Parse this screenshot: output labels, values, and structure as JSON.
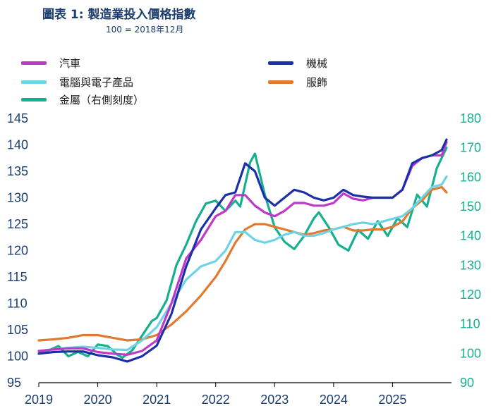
{
  "title": "圖表 1: 製造業投入價格指數",
  "subtitle": "100 = 2018年12月",
  "chart_data": {
    "type": "line",
    "title": "圖表 1: 製造業投入價格指數",
    "subtitle": "100 = 2018年12月",
    "x_start": "2019-01",
    "x_end": "2025-12",
    "x_tick_labels": [
      "2019",
      "2020",
      "2021",
      "2022",
      "2023",
      "2024",
      "2025"
    ],
    "y_left_ticks": [
      95,
      100,
      105,
      110,
      115,
      120,
      125,
      130,
      135,
      140,
      145
    ],
    "y_left_range": [
      95,
      145
    ],
    "y_right_ticks": [
      90,
      100,
      110,
      120,
      130,
      140,
      150,
      160,
      170,
      180
    ],
    "y_right_range": [
      90,
      180
    ],
    "grid": false,
    "legend_placement": "top",
    "series": [
      {
        "name": "汽車",
        "color": "#c038c8",
        "axis": "left",
        "points": [
          [
            "2019-01",
            101.0
          ],
          [
            "2019-04",
            101.3
          ],
          [
            "2019-07",
            101.5
          ],
          [
            "2019-10",
            101.5
          ],
          [
            "2020-01",
            100.8
          ],
          [
            "2020-04",
            100.5
          ],
          [
            "2020-07",
            100.3
          ],
          [
            "2020-10",
            101.0
          ],
          [
            "2021-01",
            103.0
          ],
          [
            "2021-04",
            110.0
          ],
          [
            "2021-07",
            118.5
          ],
          [
            "2021-10",
            122.0
          ],
          [
            "2022-01",
            126.5
          ],
          [
            "2022-03",
            127.5
          ],
          [
            "2022-05",
            130.5
          ],
          [
            "2022-07",
            130.5
          ],
          [
            "2022-09",
            128.5
          ],
          [
            "2022-11",
            127.2
          ],
          [
            "2023-01",
            126.5
          ],
          [
            "2023-03",
            127.5
          ],
          [
            "2023-05",
            129.0
          ],
          [
            "2023-07",
            129.0
          ],
          [
            "2023-09",
            128.5
          ],
          [
            "2023-11",
            128.5
          ],
          [
            "2024-01",
            129.0
          ],
          [
            "2024-03",
            130.8
          ],
          [
            "2024-05",
            129.8
          ],
          [
            "2024-07",
            129.5
          ],
          [
            "2024-09",
            130.0
          ],
          [
            "2024-11",
            130.0
          ],
          [
            "2025-01",
            130.0
          ],
          [
            "2025-03",
            131.5
          ],
          [
            "2025-05",
            136.0
          ],
          [
            "2025-07",
            137.5
          ],
          [
            "2025-09",
            138.0
          ],
          [
            "2025-11",
            138.0
          ],
          [
            "2025-12",
            140.5
          ]
        ]
      },
      {
        "name": "電腦與電子產品",
        "color": "#6fd3e6",
        "axis": "left",
        "points": [
          [
            "2019-01",
            101.0
          ],
          [
            "2019-04",
            101.3
          ],
          [
            "2019-07",
            101.6
          ],
          [
            "2019-10",
            101.8
          ],
          [
            "2020-01",
            101.6
          ],
          [
            "2020-04",
            101.3
          ],
          [
            "2020-07",
            101.2
          ],
          [
            "2020-10",
            103.0
          ],
          [
            "2021-01",
            105.5
          ],
          [
            "2021-04",
            110.0
          ],
          [
            "2021-07",
            114.5
          ],
          [
            "2021-10",
            117.0
          ],
          [
            "2022-01",
            118.0
          ],
          [
            "2022-03",
            120.0
          ],
          [
            "2022-05",
            123.5
          ],
          [
            "2022-07",
            123.5
          ],
          [
            "2022-09",
            122.0
          ],
          [
            "2022-11",
            121.5
          ],
          [
            "2023-01",
            122.0
          ],
          [
            "2023-03",
            123.0
          ],
          [
            "2023-05",
            123.5
          ],
          [
            "2023-07",
            122.8
          ],
          [
            "2023-09",
            122.8
          ],
          [
            "2023-11",
            123.3
          ],
          [
            "2024-01",
            124.0
          ],
          [
            "2024-03",
            124.5
          ],
          [
            "2024-05",
            125.0
          ],
          [
            "2024-07",
            125.3
          ],
          [
            "2024-09",
            125.0
          ],
          [
            "2024-11",
            125.5
          ],
          [
            "2025-01",
            126.0
          ],
          [
            "2025-03",
            126.5
          ],
          [
            "2025-05",
            128.0
          ],
          [
            "2025-07",
            130.0
          ],
          [
            "2025-09",
            132.0
          ],
          [
            "2025-11",
            132.5
          ],
          [
            "2025-12",
            134.0
          ]
        ]
      },
      {
        "name": "金屬（右側刻度）",
        "color": "#17b08f",
        "axis": "right",
        "points": [
          [
            "2019-01",
            100.0
          ],
          [
            "2019-03",
            101.0
          ],
          [
            "2019-05",
            102.5
          ],
          [
            "2019-07",
            99.0
          ],
          [
            "2019-09",
            100.5
          ],
          [
            "2019-11",
            99.0
          ],
          [
            "2020-01",
            103.0
          ],
          [
            "2020-03",
            102.5
          ],
          [
            "2020-05",
            99.5
          ],
          [
            "2020-06",
            98.5
          ],
          [
            "2020-08",
            101.0
          ],
          [
            "2020-10",
            106.0
          ],
          [
            "2020-12",
            111.0
          ],
          [
            "2021-01",
            112.0
          ],
          [
            "2021-03",
            118.0
          ],
          [
            "2021-05",
            130.0
          ],
          [
            "2021-07",
            137.0
          ],
          [
            "2021-09",
            145.0
          ],
          [
            "2021-11",
            151.0
          ],
          [
            "2022-01",
            152.0
          ],
          [
            "2022-03",
            148.5
          ],
          [
            "2022-05",
            152.0
          ],
          [
            "2022-06",
            150.0
          ],
          [
            "2022-08",
            165.0
          ],
          [
            "2022-09",
            168.0
          ],
          [
            "2022-11",
            154.0
          ],
          [
            "2023-01",
            143.0
          ],
          [
            "2023-03",
            138.0
          ],
          [
            "2023-05",
            135.5
          ],
          [
            "2023-07",
            140.0
          ],
          [
            "2023-09",
            146.0
          ],
          [
            "2023-10",
            148.0
          ],
          [
            "2023-12",
            143.0
          ],
          [
            "2024-02",
            137.0
          ],
          [
            "2024-04",
            135.0
          ],
          [
            "2024-06",
            142.0
          ],
          [
            "2024-08",
            139.0
          ],
          [
            "2024-10",
            145.0
          ],
          [
            "2024-12",
            140.0
          ],
          [
            "2025-02",
            146.0
          ],
          [
            "2025-04",
            143.0
          ],
          [
            "2025-06",
            154.0
          ],
          [
            "2025-08",
            150.0
          ],
          [
            "2025-10",
            163.0
          ],
          [
            "2025-12",
            170.0
          ]
        ]
      },
      {
        "name": "機械",
        "color": "#1b2fa8",
        "axis": "left",
        "points": [
          [
            "2019-01",
            100.5
          ],
          [
            "2019-04",
            100.8
          ],
          [
            "2019-07",
            100.9
          ],
          [
            "2019-10",
            100.9
          ],
          [
            "2020-01",
            100.2
          ],
          [
            "2020-04",
            99.8
          ],
          [
            "2020-07",
            99.0
          ],
          [
            "2020-10",
            100.0
          ],
          [
            "2021-01",
            102.0
          ],
          [
            "2021-04",
            108.0
          ],
          [
            "2021-07",
            117.0
          ],
          [
            "2021-10",
            124.0
          ],
          [
            "2022-01",
            128.0
          ],
          [
            "2022-03",
            130.5
          ],
          [
            "2022-05",
            131.0
          ],
          [
            "2022-07",
            136.5
          ],
          [
            "2022-09",
            135.0
          ],
          [
            "2022-11",
            130.0
          ],
          [
            "2023-01",
            128.5
          ],
          [
            "2023-03",
            130.0
          ],
          [
            "2023-05",
            131.5
          ],
          [
            "2023-07",
            131.0
          ],
          [
            "2023-09",
            130.0
          ],
          [
            "2023-11",
            129.5
          ],
          [
            "2024-01",
            130.0
          ],
          [
            "2024-03",
            131.5
          ],
          [
            "2024-05",
            130.5
          ],
          [
            "2024-07",
            130.2
          ],
          [
            "2024-09",
            130.0
          ],
          [
            "2024-11",
            130.0
          ],
          [
            "2025-01",
            130.0
          ],
          [
            "2025-03",
            131.5
          ],
          [
            "2025-05",
            136.5
          ],
          [
            "2025-07",
            137.5
          ],
          [
            "2025-09",
            138.0
          ],
          [
            "2025-11",
            139.0
          ],
          [
            "2025-12",
            141.0
          ]
        ]
      },
      {
        "name": "服飾",
        "color": "#e07a30",
        "axis": "left",
        "points": [
          [
            "2019-01",
            103.0
          ],
          [
            "2019-04",
            103.2
          ],
          [
            "2019-07",
            103.5
          ],
          [
            "2019-10",
            104.0
          ],
          [
            "2020-01",
            104.0
          ],
          [
            "2020-04",
            103.5
          ],
          [
            "2020-07",
            103.0
          ],
          [
            "2020-10",
            103.2
          ],
          [
            "2021-01",
            104.0
          ],
          [
            "2021-04",
            106.0
          ],
          [
            "2021-07",
            108.5
          ],
          [
            "2021-10",
            111.5
          ],
          [
            "2022-01",
            115.0
          ],
          [
            "2022-03",
            118.0
          ],
          [
            "2022-05",
            121.5
          ],
          [
            "2022-07",
            124.0
          ],
          [
            "2022-09",
            125.0
          ],
          [
            "2022-11",
            125.0
          ],
          [
            "2023-01",
            124.5
          ],
          [
            "2023-03",
            124.0
          ],
          [
            "2023-05",
            123.5
          ],
          [
            "2023-07",
            123.0
          ],
          [
            "2023-09",
            123.3
          ],
          [
            "2023-11",
            123.8
          ],
          [
            "2024-01",
            124.0
          ],
          [
            "2024-03",
            124.5
          ],
          [
            "2024-05",
            123.8
          ],
          [
            "2024-07",
            123.8
          ],
          [
            "2024-09",
            124.0
          ],
          [
            "2024-11",
            124.0
          ],
          [
            "2025-01",
            124.5
          ],
          [
            "2025-03",
            125.5
          ],
          [
            "2025-05",
            128.0
          ],
          [
            "2025-07",
            129.5
          ],
          [
            "2025-09",
            131.5
          ],
          [
            "2025-11",
            132.0
          ],
          [
            "2025-12",
            131.0
          ]
        ]
      }
    ],
    "left_axis_color": "#1b3d6e",
    "right_axis_color": "#17b08f"
  }
}
